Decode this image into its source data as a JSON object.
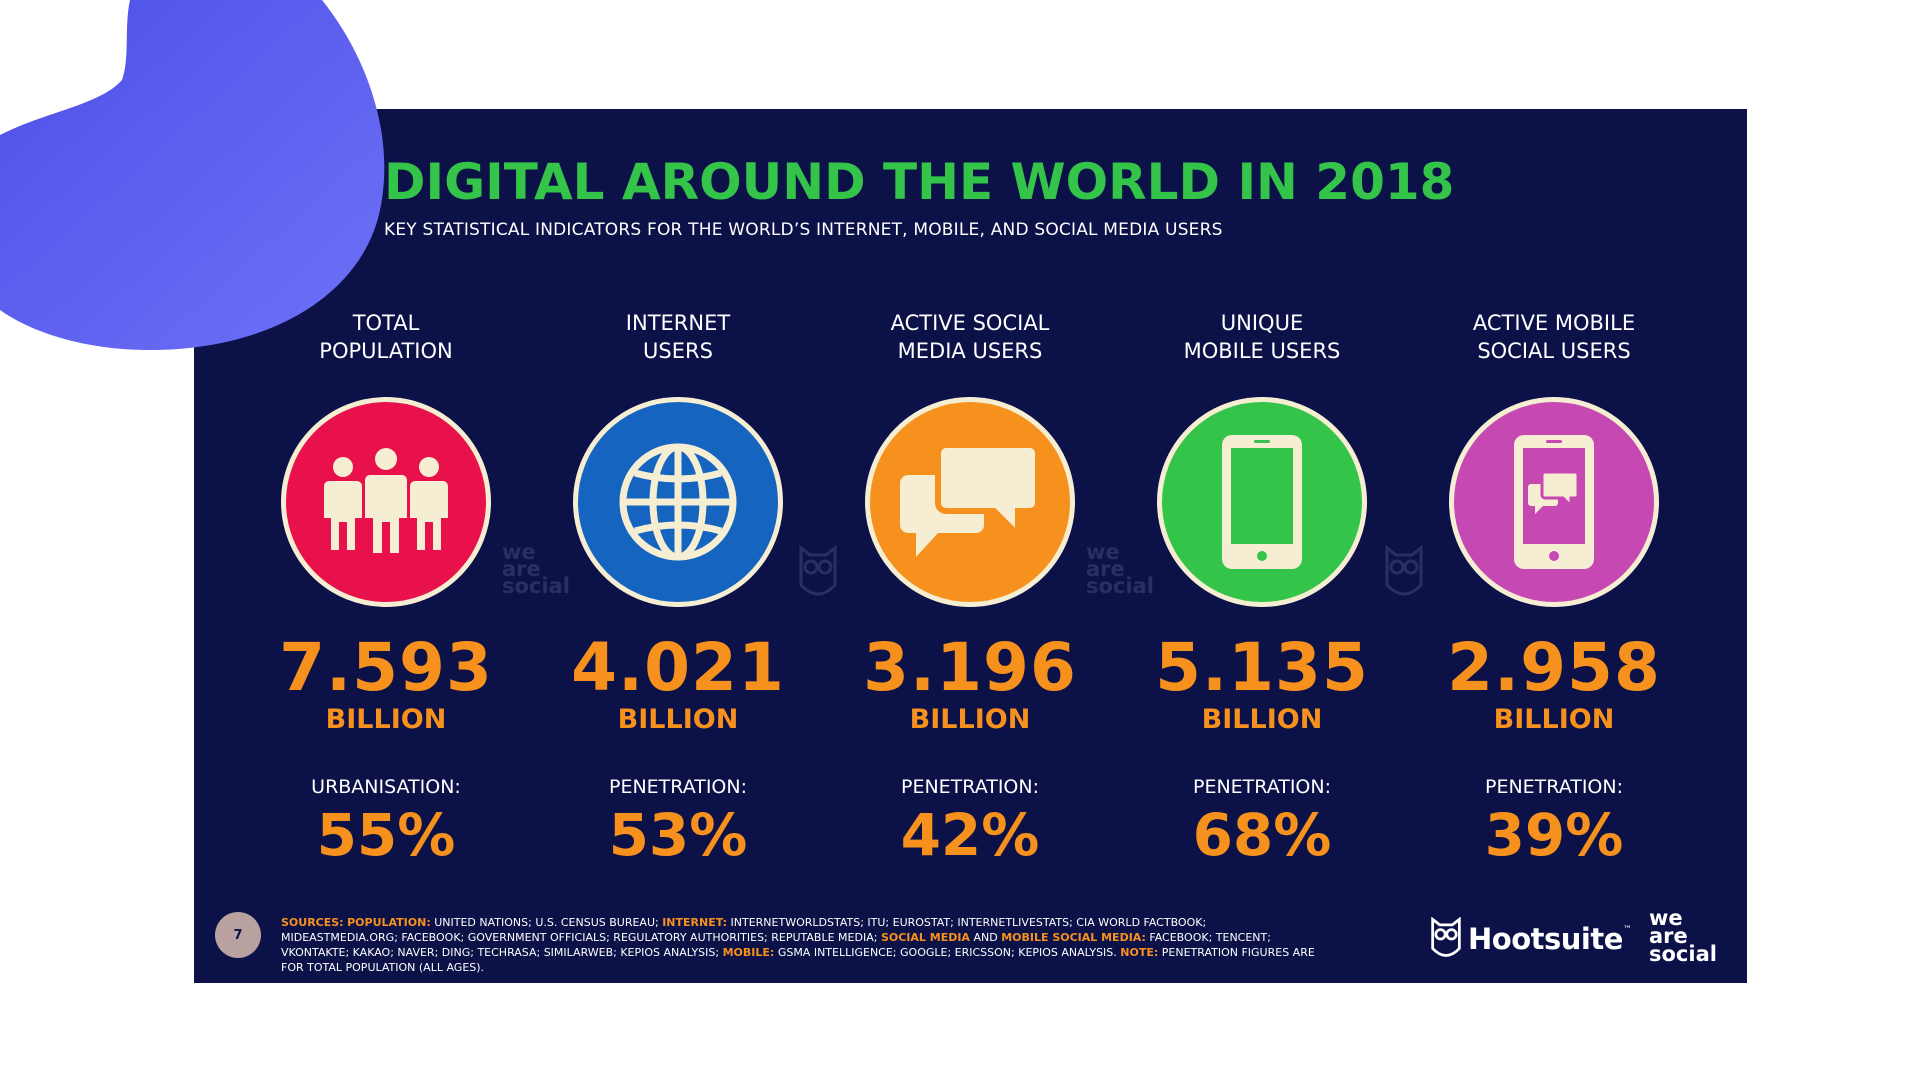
{
  "slide": {
    "title": "DIGITAL AROUND THE WORLD IN 2018",
    "subtitle": "KEY STATISTICAL INDICATORS FOR THE WORLD’S INTERNET, MOBILE, AND SOCIAL MEDIA USERS",
    "page_number": "7"
  },
  "columns": [
    {
      "heading": [
        "TOTAL",
        "POPULATION"
      ],
      "value": "7.593",
      "unit": "BILLION",
      "stat_label": "URBANISATION:",
      "stat_value": "55%",
      "color": "#e8114b",
      "icon": "people-icon"
    },
    {
      "heading": [
        "INTERNET",
        "USERS"
      ],
      "value": "4.021",
      "unit": "BILLION",
      "stat_label": "PENETRATION:",
      "stat_value": "53%",
      "color": "#1565c0",
      "icon": "globe-icon"
    },
    {
      "heading": [
        "ACTIVE SOCIAL",
        "MEDIA USERS"
      ],
      "value": "3.196",
      "unit": "BILLION",
      "stat_label": "PENETRATION:",
      "stat_value": "42%",
      "color": "#f7911e",
      "icon": "speech-bubbles-icon"
    },
    {
      "heading": [
        "UNIQUE",
        "MOBILE USERS"
      ],
      "value": "5.135",
      "unit": "BILLION",
      "stat_label": "PENETRATION:",
      "stat_value": "68%",
      "color": "#34c449",
      "icon": "mobile-phone-icon"
    },
    {
      "heading": [
        "ACTIVE MOBILE",
        "SOCIAL USERS"
      ],
      "value": "2.958",
      "unit": "BILLION",
      "stat_label": "PENETRATION:",
      "stat_value": "39%",
      "color": "#c649b3",
      "icon": "mobile-social-icon"
    }
  ],
  "watermarks": {
    "wearesocial": [
      "we",
      "are",
      "social"
    ]
  },
  "sources": {
    "label": "SOURCES:",
    "population_label": "POPULATION:",
    "population_text": "UNITED NATIONS; U.S. CENSUS BUREAU;",
    "internet_label": "INTERNET:",
    "internet_text": "INTERNETWORLDSTATS; ITU; EUROSTAT; INTERNETLIVESTATS; CIA WORLD FACTBOOK; MIDEASTMEDIA.ORG; FACEBOOK; GOVERNMENT OFFICIALS; REGULATORY AUTHORITIES; REPUTABLE MEDIA;",
    "social_label": "SOCIAL MEDIA",
    "and_text": "AND",
    "mobile_social_label": "MOBILE SOCIAL MEDIA:",
    "social_text": "FACEBOOK; TENCENT; VKONTAKTE; KAKAO; NAVER; DING; TECHRASA; SIMILARWEB; KEPIOS ANALYSIS;",
    "mobile_label": "MOBILE:",
    "mobile_text": "GSMA INTELLIGENCE; GOOGLE; ERICSSON; KEPIOS ANALYSIS.",
    "note_label": "NOTE:",
    "note_text": "PENETRATION FIGURES ARE FOR TOTAL POPULATION (ALL AGES)."
  },
  "branding": {
    "hootsuite": "Hootsuite",
    "hootsuite_tm": "™",
    "wearesocial": [
      "we",
      "are",
      "social"
    ]
  },
  "colors": {
    "background": "#0c1148",
    "title": "#34c449",
    "accent": "#f7911e",
    "blob": "#5b5ef0"
  }
}
